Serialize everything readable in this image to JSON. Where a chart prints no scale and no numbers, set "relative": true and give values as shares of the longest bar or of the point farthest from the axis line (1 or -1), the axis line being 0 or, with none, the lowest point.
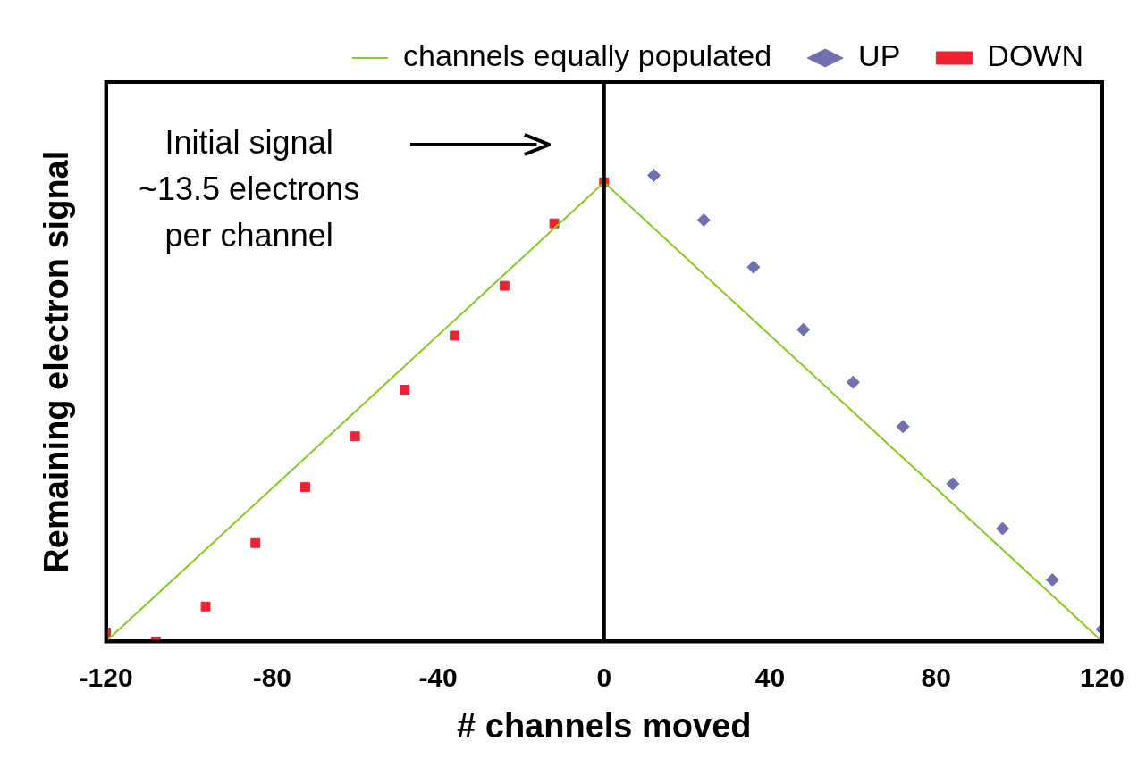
{
  "chart_data": {
    "type": "scatter",
    "xlabel": "# channels moved",
    "ylabel": "Remaining electron signal",
    "relative": true,
    "xlim": [
      -120,
      120
    ],
    "xticks": [
      -120,
      -80,
      -40,
      0,
      40,
      80,
      120
    ],
    "tick_labels": "x",
    "grid": false,
    "legend": "top",
    "line_style": "solid",
    "series": [
      {
        "name": "UP",
        "type": "scatter",
        "marker": "diamond",
        "color": "#7070b0",
        "x": [
          12,
          24,
          36,
          48,
          60,
          72,
          84,
          96,
          108,
          120
        ],
        "values": [
          1,
          0.904,
          0.803,
          0.669,
          0.556,
          0.461,
          0.338,
          0.242,
          0.132,
          0.026
        ]
      },
      {
        "name": "DOWN",
        "type": "scatter",
        "marker": "square",
        "color": "#ee2233",
        "x": [
          -120,
          -108,
          -96,
          -84,
          -72,
          -60,
          -48,
          -36,
          -24,
          -12,
          0
        ],
        "values": [
          0.019,
          0,
          0.075,
          0.211,
          0.331,
          0.44,
          0.54,
          0.656,
          0.763,
          0.897,
          0.985
        ]
      },
      {
        "name": "channels equally populated",
        "type": "line",
        "marker": "none",
        "color": "#88cc22",
        "x": [
          -120,
          0,
          120
        ],
        "values": [
          0,
          0.985,
          0
        ]
      }
    ],
    "ref_lines": [
      {
        "axis": "x",
        "value": 0,
        "color": "#000000"
      }
    ],
    "annotations": [
      "Initial signal\n~13.5 electrons\nper channel"
    ]
  }
}
